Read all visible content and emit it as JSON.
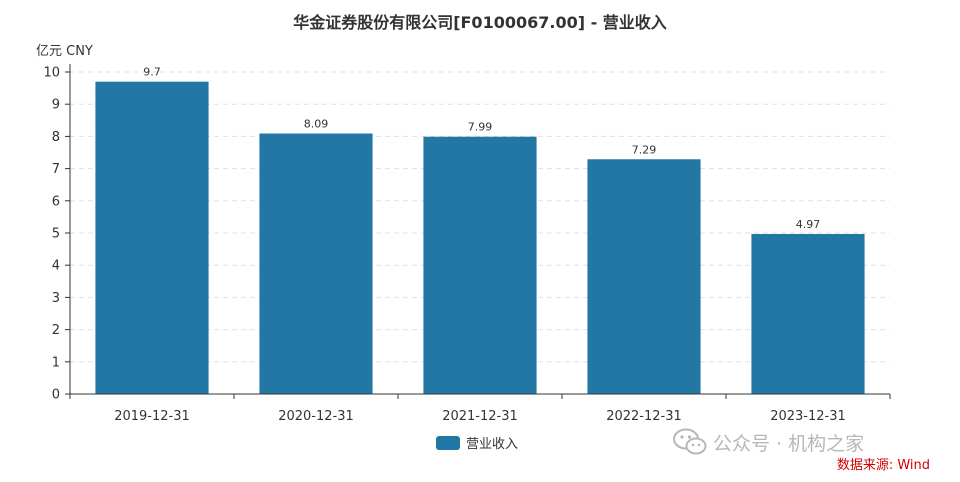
{
  "chart_data": {
    "type": "bar",
    "title": "华金证券股份有限公司[F0100067.00] - 营业收入",
    "unit_label": "亿元  CNY",
    "categories": [
      "2019-12-31",
      "2020-12-31",
      "2021-12-31",
      "2022-12-31",
      "2023-12-31"
    ],
    "series": [
      {
        "name": "营业收入",
        "values": [
          9.7,
          8.09,
          7.99,
          7.29,
          4.97
        ],
        "labels": [
          "9.7",
          "8.09",
          "7.99",
          "7.29",
          "4.97"
        ]
      }
    ],
    "ylim": [
      0,
      10
    ],
    "yticks": [
      "0",
      "1",
      "2",
      "3",
      "4",
      "5",
      "6",
      "7",
      "8",
      "9",
      "10"
    ],
    "grid": true,
    "legend_position": "bottom-center",
    "colors": {
      "bar": "#2277a4",
      "grid": "#e0e0e0",
      "axis": "#333333"
    }
  },
  "watermark": {
    "text": "公众号 · 机构之家",
    "icon": "wechat-icon"
  },
  "source": {
    "text": "数据来源: Wind",
    "color": "#d40000"
  }
}
